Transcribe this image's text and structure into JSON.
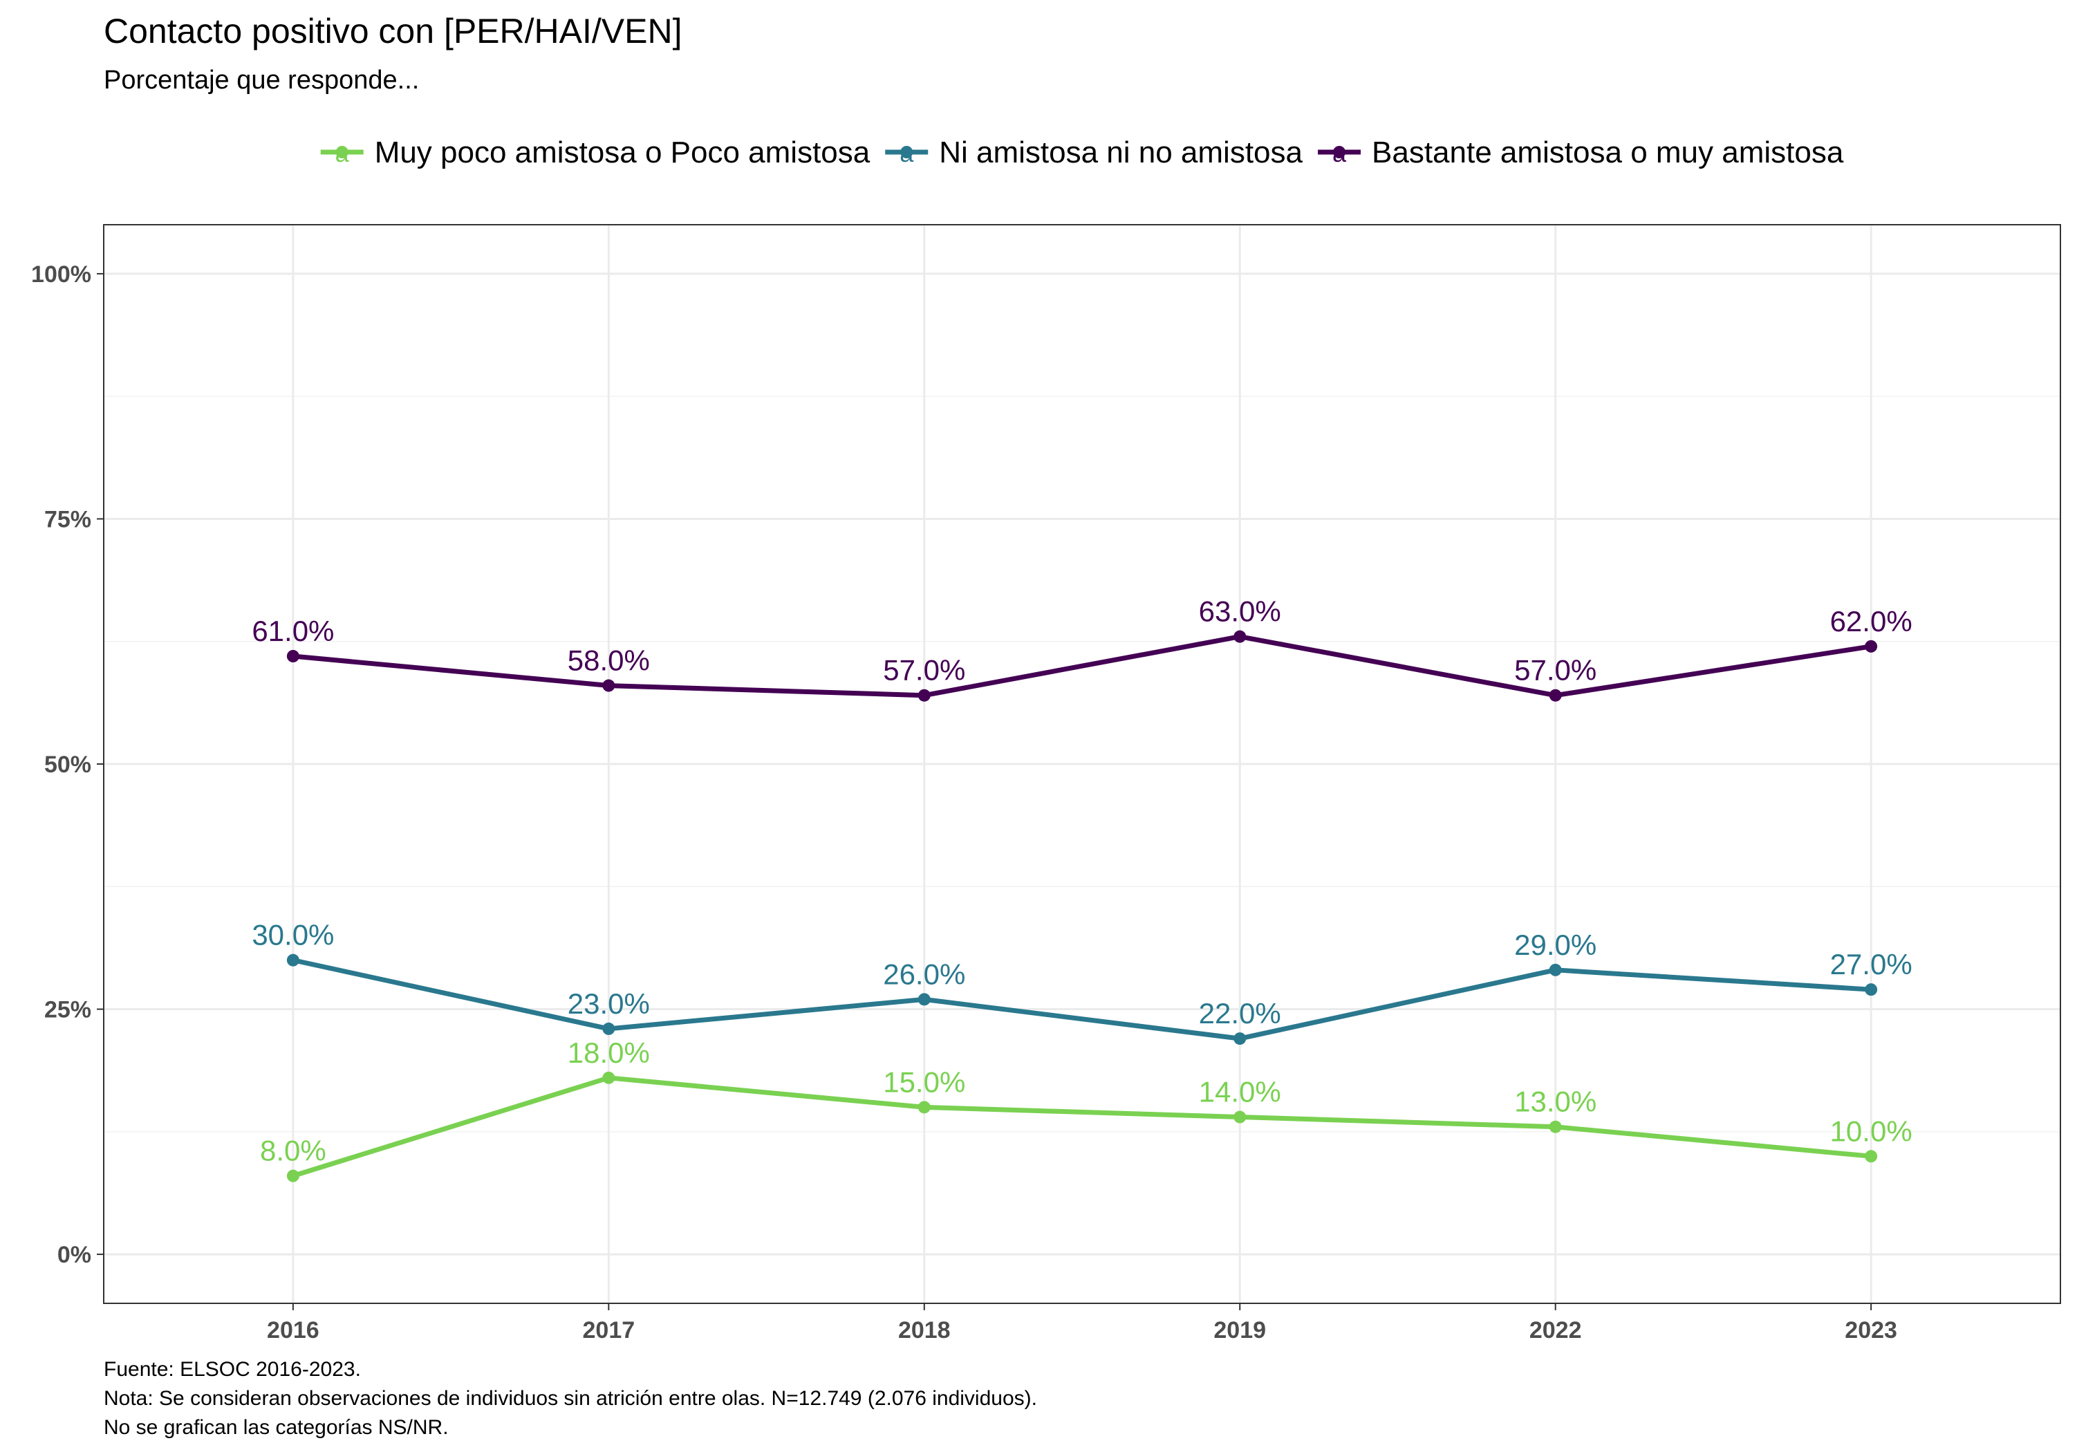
{
  "chart_data": {
    "type": "line",
    "title": "Contacto positivo con [PER/HAI/VEN]",
    "subtitle": "Porcentaje que responde...",
    "xlabel": "",
    "ylabel": "",
    "categories": [
      "2016",
      "2017",
      "2018",
      "2019",
      "2022",
      "2023"
    ],
    "ylim": [
      -5,
      105
    ],
    "yticks": [
      {
        "value": 0,
        "label": "0%"
      },
      {
        "value": 25,
        "label": "25%"
      },
      {
        "value": 50,
        "label": "50%"
      },
      {
        "value": 75,
        "label": "75%"
      },
      {
        "value": 100,
        "label": "100%"
      }
    ],
    "grid": true,
    "legend_position": "top",
    "series": [
      {
        "name": "Muy poco amistosa o Poco amistosa",
        "color": "#7ad151",
        "values": [
          8,
          18,
          15,
          14,
          13,
          10
        ],
        "labels": [
          "8.0%",
          "18.0%",
          "15.0%",
          "14.0%",
          "13.0%",
          "10.0%"
        ]
      },
      {
        "name": "Ni amistosa ni no amistosa",
        "color": "#2a788e",
        "values": [
          30,
          23,
          26,
          22,
          29,
          27
        ],
        "labels": [
          "30.0%",
          "23.0%",
          "26.0%",
          "22.0%",
          "29.0%",
          "27.0%"
        ]
      },
      {
        "name": "Bastante amistosa o muy amistosa",
        "color": "#440154",
        "values": [
          61,
          58,
          57,
          63,
          57,
          62
        ],
        "labels": [
          "61.0%",
          "58.0%",
          "57.0%",
          "63.0%",
          "57.0%",
          "62.0%"
        ]
      }
    ],
    "legend_key_glyph": "a"
  },
  "caption": {
    "line1": "Fuente: ELSOC 2016-2023.",
    "line2": "Nota: Se consideran observaciones de individuos sin atrición entre olas. N=12.749 (2.076 individuos).",
    "line3": "No se grafican las categorías NS/NR."
  }
}
